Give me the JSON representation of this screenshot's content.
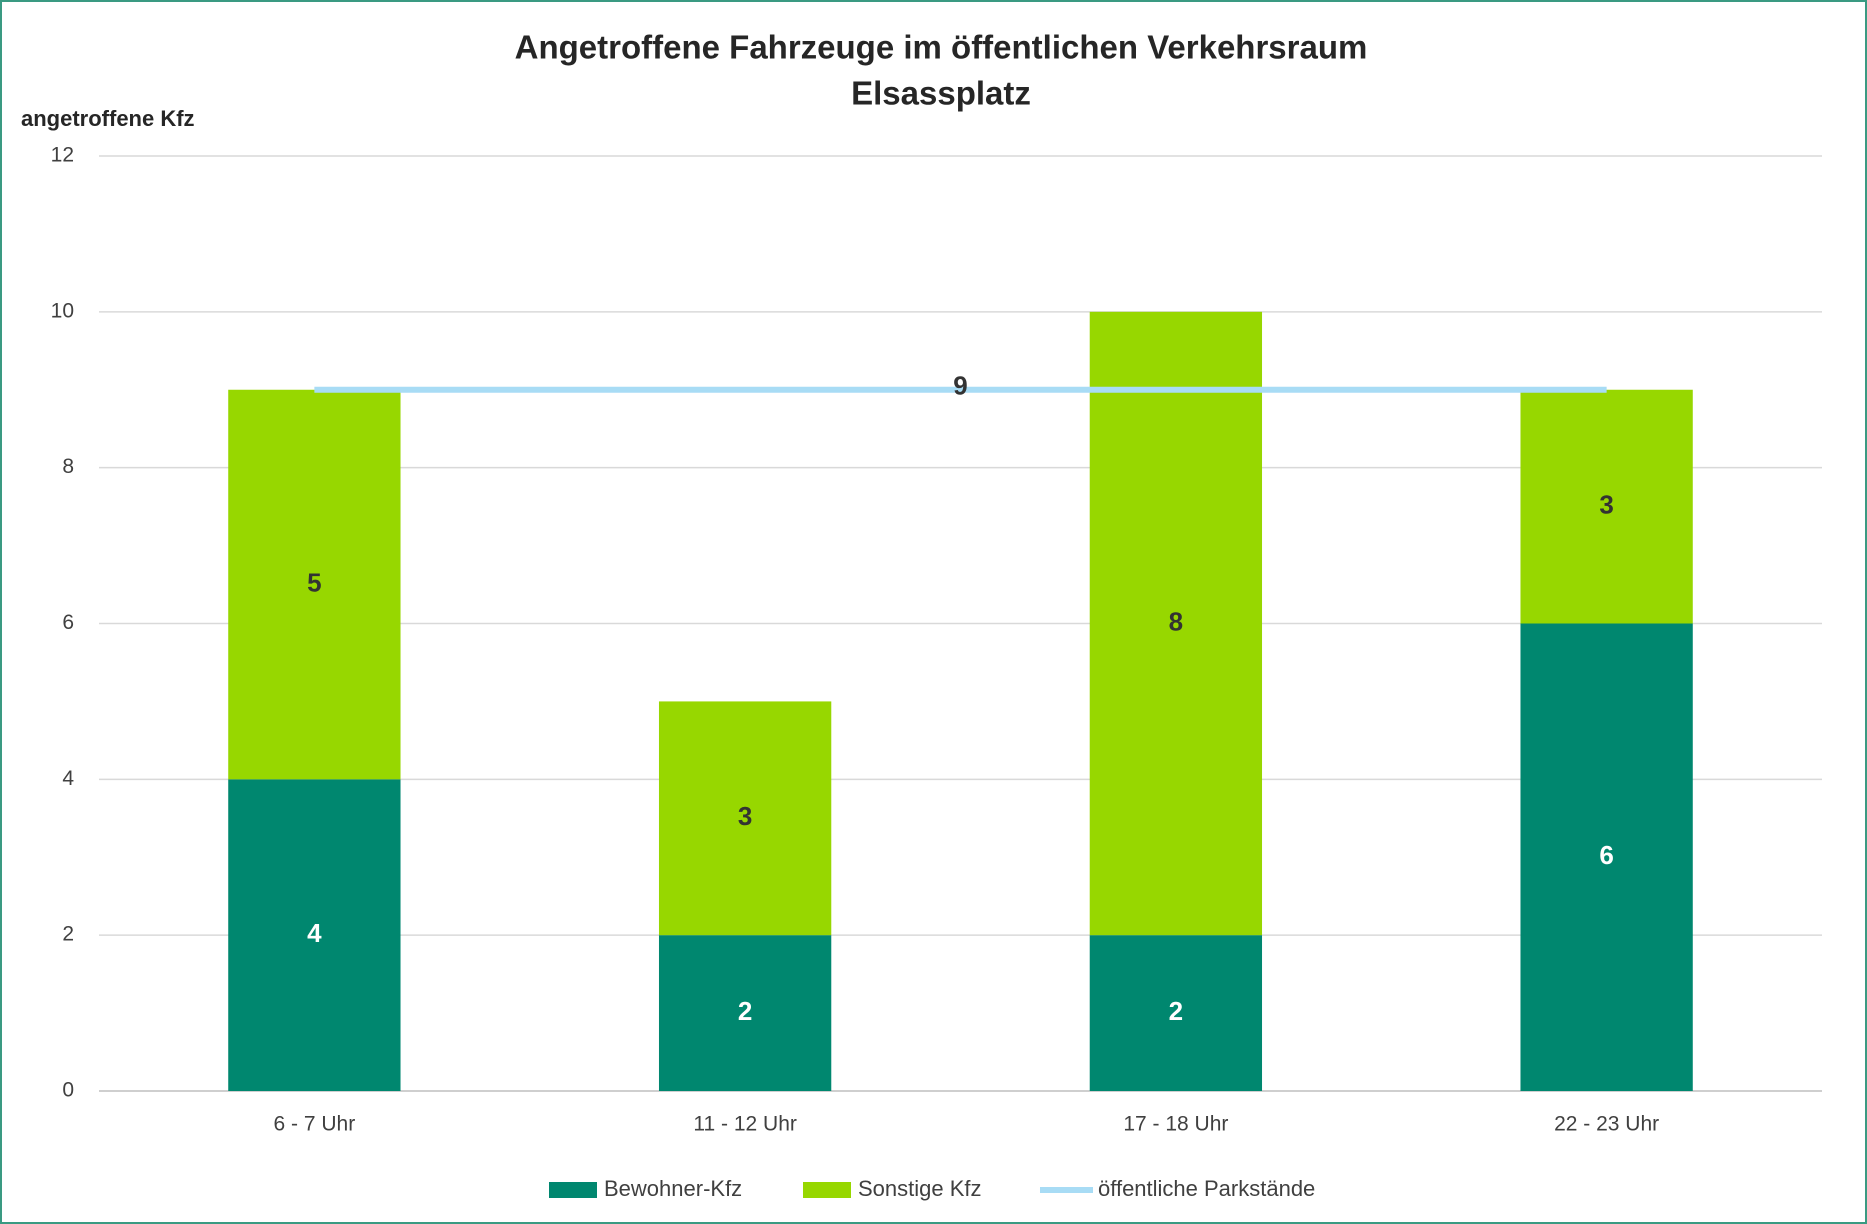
{
  "chart_data": {
    "type": "bar",
    "stacked": true,
    "title": "Angetroffene Fahrzeuge im öffentlichen Verkehrsraum",
    "subtitle": "Elsassplatz",
    "y_label": "angetroffene Kfz",
    "categories": [
      "6 - 7 Uhr",
      "11 - 12 Uhr",
      "17 - 18 Uhr",
      "22 - 23 Uhr"
    ],
    "series": [
      {
        "name": "Bewohner-Kfz",
        "color": "#00876f",
        "values": [
          4,
          2,
          2,
          6
        ]
      },
      {
        "name": "Sonstige Kfz",
        "color": "#97d700",
        "values": [
          5,
          3,
          8,
          3
        ]
      },
      {
        "name": "öffentliche Parkstände",
        "type": "line",
        "color": "#a8dcf5",
        "values": [
          9,
          9,
          9,
          9
        ]
      }
    ],
    "ylim": [
      0,
      12
    ],
    "yticks": [
      0,
      2,
      4,
      6,
      8,
      10,
      12
    ],
    "grid": true,
    "legend": "bottom"
  }
}
